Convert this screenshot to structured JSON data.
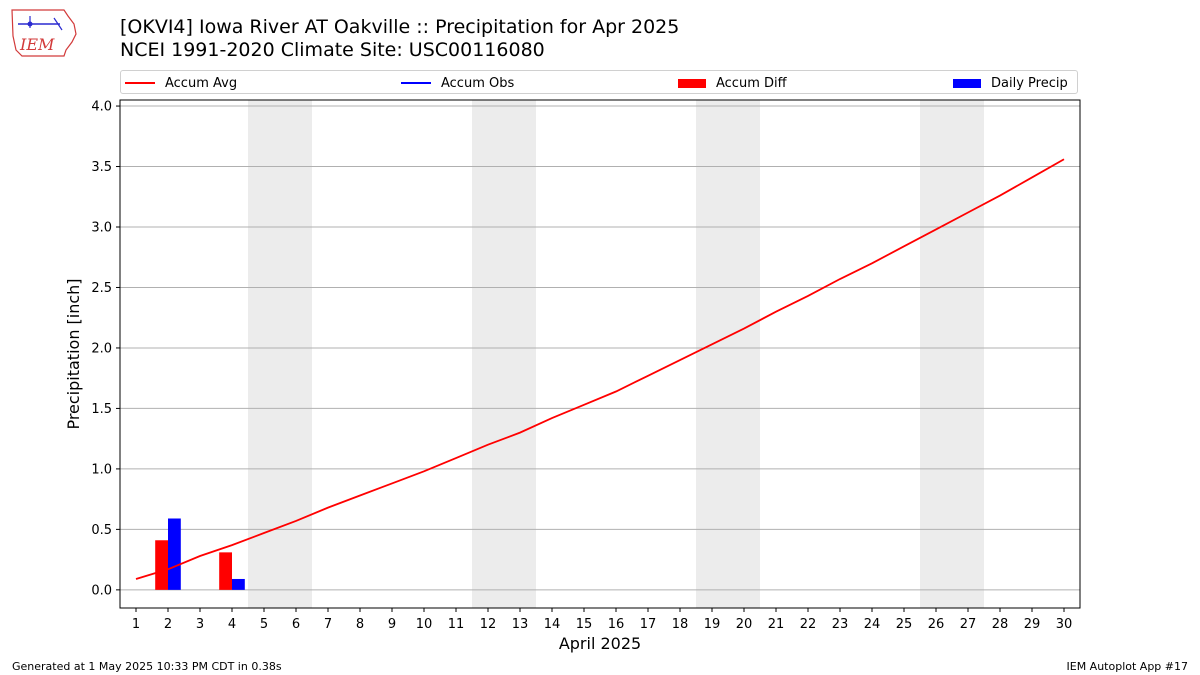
{
  "page": {
    "title_line1": "[OKVI4] Iowa River  AT Oakville :: Precipitation for Apr 2025",
    "title_line2": "NCEI 1991-2020 Climate Site: USC00116080",
    "logo_text": "IEM",
    "footer_left": "Generated at 1 May 2025 10:33 PM CDT in 0.38s",
    "footer_right": "IEM Autoplot App #17"
  },
  "legend": {
    "avg": "Accum Avg",
    "obs": "Accum Obs",
    "diff": "Accum Diff",
    "daily": "Daily Precip"
  },
  "colors": {
    "avg": "#ff0000",
    "obs": "#0000ff",
    "diff": "#ff0000",
    "daily": "#0000ff",
    "weekend": "#ececec",
    "grid": "#b0b0b0"
  },
  "chart_data": {
    "type": "bar",
    "xlabel": "April 2025",
    "ylabel": "Precipitation [inch]",
    "xlim": [
      0.5,
      30.5
    ],
    "ylim": [
      -0.15,
      4.05
    ],
    "yticks": [
      0.0,
      0.5,
      1.0,
      1.5,
      2.0,
      2.5,
      3.0,
      3.5,
      4.0
    ],
    "ytick_labels": [
      "0.0",
      "0.5",
      "1.0",
      "1.5",
      "2.0",
      "2.5",
      "3.0",
      "3.5",
      "4.0"
    ],
    "days": [
      1,
      2,
      3,
      4,
      5,
      6,
      7,
      8,
      9,
      10,
      11,
      12,
      13,
      14,
      15,
      16,
      17,
      18,
      19,
      20,
      21,
      22,
      23,
      24,
      25,
      26,
      27,
      28,
      29,
      30
    ],
    "weekend_days": [
      5,
      6,
      12,
      13,
      19,
      20,
      26,
      27
    ],
    "grid": "horizontal",
    "legend_position": "top",
    "series": [
      {
        "name": "Accum Avg",
        "type": "line",
        "values": [
          0.09,
          0.17,
          0.28,
          0.37,
          0.47,
          0.57,
          0.68,
          0.78,
          0.88,
          0.98,
          1.09,
          1.2,
          1.3,
          1.42,
          1.53,
          1.64,
          1.77,
          1.9,
          2.03,
          2.16,
          2.3,
          2.43,
          2.57,
          2.7,
          2.84,
          2.98,
          3.12,
          3.26,
          3.41,
          3.56
        ]
      },
      {
        "name": "Accum Diff",
        "type": "bar",
        "x": [
          2,
          4
        ],
        "values": [
          0.41,
          0.31
        ]
      },
      {
        "name": "Daily Precip",
        "type": "bar",
        "x": [
          2,
          4
        ],
        "values": [
          0.59,
          0.09
        ]
      }
    ]
  }
}
